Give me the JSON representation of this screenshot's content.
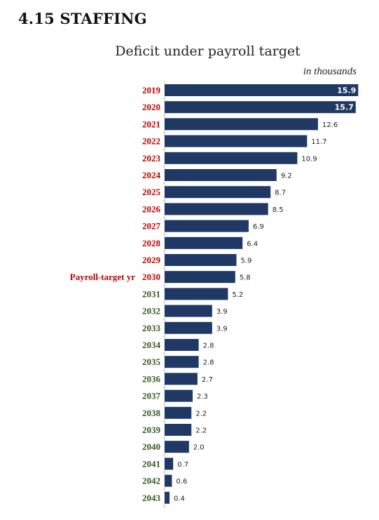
{
  "header": {
    "section_title": "4.15 STAFFING"
  },
  "chart_data": {
    "type": "bar",
    "orientation": "horizontal",
    "title": "Deficit under payroll target",
    "unit_note": "in thousands",
    "xlabel": "",
    "ylabel": "",
    "categories": [
      "2019",
      "2020",
      "2021",
      "2022",
      "2023",
      "2024",
      "2025",
      "2026",
      "2027",
      "2028",
      "2029",
      "2030",
      "2031",
      "2032",
      "2033",
      "2034",
      "2035",
      "2036",
      "2037",
      "2038",
      "2039",
      "2040",
      "2041",
      "2042",
      "2043"
    ],
    "values": [
      15.9,
      15.7,
      12.6,
      11.7,
      10.9,
      9.2,
      8.7,
      8.5,
      6.9,
      6.4,
      5.9,
      5.8,
      5.2,
      3.9,
      3.9,
      2.8,
      2.8,
      2.7,
      2.3,
      2.2,
      2.2,
      2.0,
      0.7,
      0.6,
      0.4
    ],
    "value_labels": [
      "15.9",
      "15.7",
      "12.6",
      "11.7",
      "10.9",
      "9.2",
      "8.7",
      "8.5",
      "6.9",
      "6.4",
      "5.9",
      "5.8",
      "5.2",
      "3.9",
      "3.9",
      "2.8",
      "2.8",
      "2.7",
      "2.3",
      "2.2",
      "2.2",
      "2.0",
      "0.7",
      "0.6",
      "0.4"
    ],
    "xlim": [
      0,
      16
    ],
    "grid": false,
    "annotation": {
      "text": "Payroll-target yr",
      "category": "2030"
    },
    "colors": {
      "bar": "#1f3864",
      "label_before_target": "#c00000",
      "label_after_target": "#375623"
    }
  }
}
